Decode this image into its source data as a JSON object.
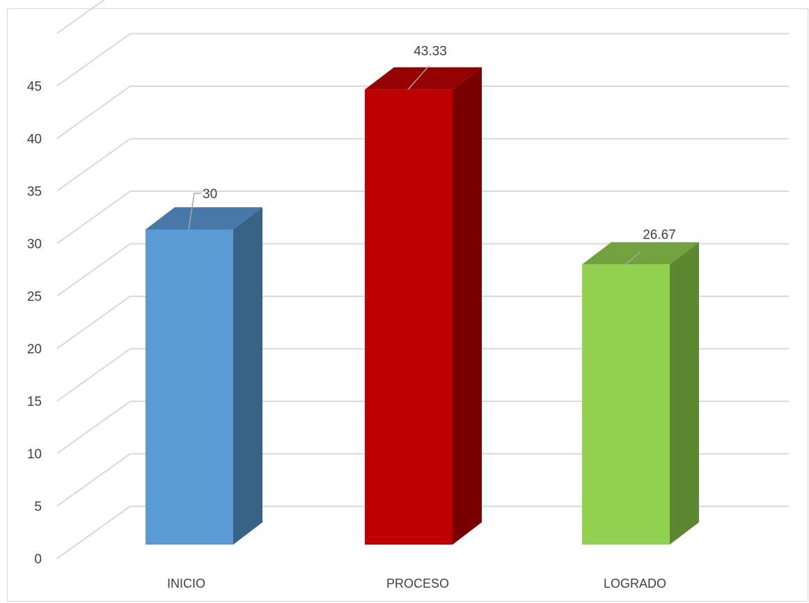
{
  "chart_data": {
    "type": "bar",
    "style": "3d-column",
    "categories": [
      "INICIO",
      "PROCESO",
      "LOGRADO"
    ],
    "values": [
      30,
      43.33,
      26.67
    ],
    "data_labels": [
      "30",
      "43.33",
      "26.67"
    ],
    "colors": {
      "front": [
        "#5b9bd5",
        "#c00000",
        "#92d050"
      ],
      "side": [
        "#386386",
        "#7a0000",
        "#5e8733"
      ],
      "top": [
        "#4679a7",
        "#950000",
        "#71a23e"
      ]
    },
    "yticks": [
      "0",
      "5",
      "10",
      "15",
      "20",
      "25",
      "30",
      "35",
      "40",
      "45"
    ],
    "ylim": [
      0,
      50
    ],
    "grid": true,
    "legend": "none"
  }
}
